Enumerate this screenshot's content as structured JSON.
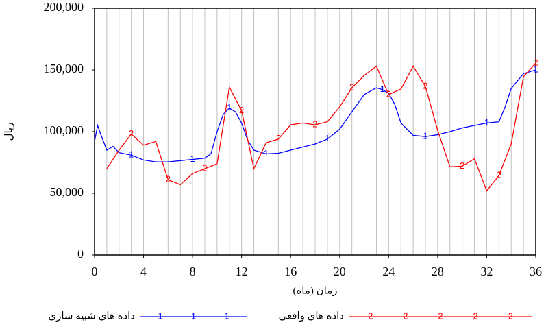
{
  "chart_data": {
    "type": "line",
    "x_label": "زمان (ماه)",
    "y_label": "ریال",
    "xlim": [
      0,
      36
    ],
    "xticks": [
      0,
      4,
      8,
      12,
      16,
      20,
      24,
      28,
      32,
      36
    ],
    "ylim": [
      0,
      200000
    ],
    "yticks": [
      0,
      {
        "value": 50000,
        "label": "50,000"
      },
      {
        "value": 100000,
        "label": "100,000"
      },
      {
        "value": 150000,
        "label": "150,000"
      },
      {
        "value": 200000,
        "label": "200,000"
      }
    ],
    "grid": true,
    "series": [
      {
        "name": "داده های شبیه سازی",
        "color": "#0000ff",
        "marker": "1",
        "x": [
          0,
          0.25,
          0.5,
          1,
          1.5,
          2,
          3,
          4,
          5,
          6,
          7,
          8,
          9,
          9.5,
          10,
          10.5,
          11,
          11.5,
          12,
          12.5,
          13,
          14,
          15,
          16,
          17,
          18,
          19,
          20,
          21,
          22,
          23,
          23.5,
          24,
          24.5,
          25,
          26,
          27,
          28,
          29,
          30,
          31,
          32,
          33,
          33.5,
          34,
          35,
          36
        ],
        "values": [
          92000,
          105000,
          98000,
          85000,
          88000,
          83000,
          81000,
          77000,
          75500,
          75500,
          76500,
          77500,
          78500,
          82000,
          100000,
          114000,
          119000,
          116000,
          107000,
          93000,
          85000,
          82000,
          82500,
          85000,
          87500,
          90000,
          94000,
          102000,
          116000,
          130000,
          135500,
          134000,
          131000,
          122000,
          107000,
          97000,
          96000,
          97500,
          100000,
          103000,
          105000,
          107000,
          108000,
          120000,
          135000,
          147000,
          150000
        ]
      },
      {
        "name": "داده های واقعی",
        "color": "#ff0000",
        "marker": "2",
        "x": [
          1,
          2,
          3,
          4,
          5,
          6,
          7,
          8,
          9,
          10,
          11,
          12,
          13,
          14,
          15,
          16,
          17,
          18,
          19,
          20,
          21,
          22,
          23,
          24,
          25,
          26,
          27,
          28,
          29,
          30,
          31,
          32,
          33,
          34,
          35,
          36
        ],
        "values": [
          70000,
          85000,
          98000,
          89000,
          92000,
          61000,
          57000,
          66000,
          70000,
          74000,
          136000,
          117000,
          70000,
          91000,
          94000,
          105500,
          107000,
          105500,
          108000,
          120000,
          135500,
          145500,
          153000,
          130000,
          134500,
          153000,
          136500,
          101000,
          71500,
          72000,
          78000,
          52000,
          64500,
          90000,
          144500,
          155500
        ]
      }
    ]
  }
}
